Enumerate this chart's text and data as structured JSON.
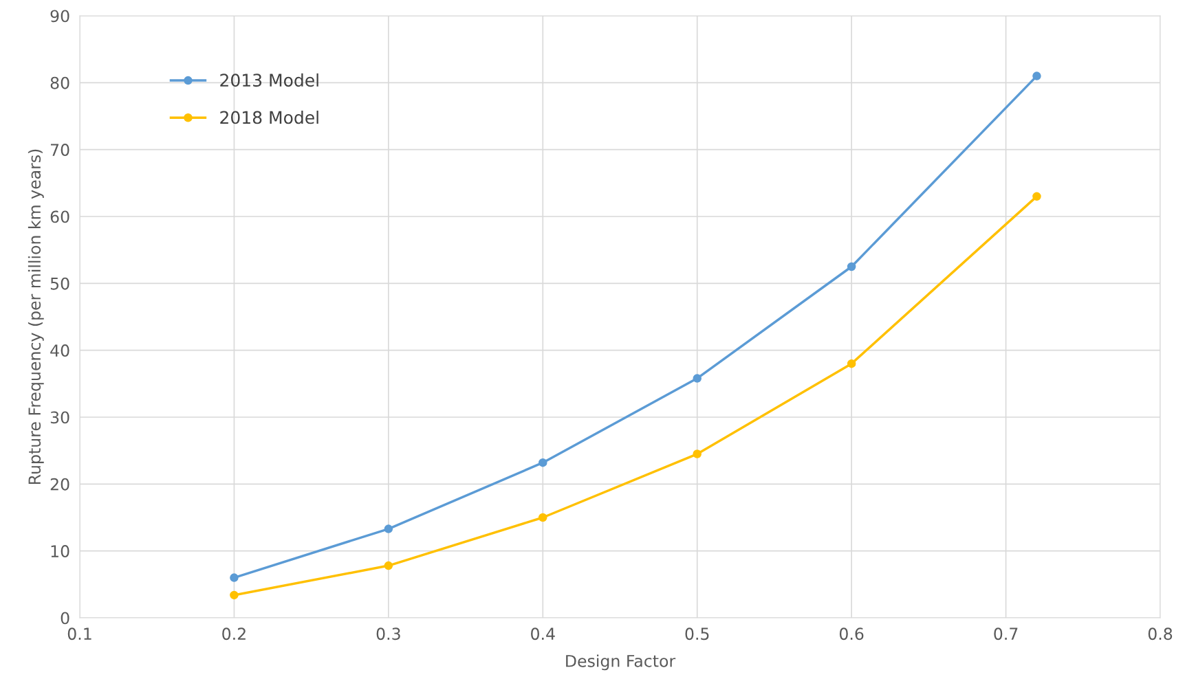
{
  "chart_data": {
    "type": "line",
    "xlabel": "Design Factor",
    "ylabel": "Rupture Frequency (per million km years)",
    "x": [
      0.2,
      0.3,
      0.4,
      0.5,
      0.6,
      0.72
    ],
    "series": [
      {
        "name": "2013 Model",
        "color": "#5b9bd5",
        "values": [
          6,
          13.3,
          23.2,
          35.8,
          52.5,
          81
        ]
      },
      {
        "name": "2018 Model",
        "color": "#ffc000",
        "values": [
          3.4,
          7.8,
          15,
          24.5,
          38,
          63
        ]
      }
    ],
    "xlim": [
      0.1,
      0.8
    ],
    "xticks": [
      0.1,
      0.2,
      0.3,
      0.4,
      0.5,
      0.6,
      0.7,
      0.8
    ],
    "ylim": [
      0,
      90
    ],
    "yticks": [
      0,
      10,
      20,
      30,
      40,
      50,
      60,
      70,
      80,
      90
    ],
    "grid": true,
    "legend": "top left",
    "marker": "circle",
    "line_style": "solid"
  }
}
